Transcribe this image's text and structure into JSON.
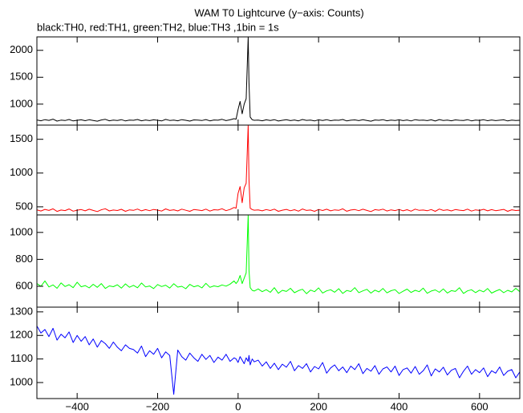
{
  "title": "WAM T0 Lightcurve (y−axis: Counts)",
  "subtitle": "black:TH0, red:TH1, green:TH2, blue:TH3 ,1bin = 1s",
  "chart_data": [
    {
      "type": "line",
      "color": "#000000",
      "xlim": [
        -500,
        700
      ],
      "ylim": [
        610,
        2250
      ],
      "yticks": [
        1000,
        1500,
        2000
      ],
      "x": [
        -500,
        -490,
        -480,
        -470,
        -460,
        -450,
        -440,
        -430,
        -420,
        -410,
        -400,
        -390,
        -380,
        -370,
        -360,
        -350,
        -340,
        -330,
        -320,
        -310,
        -300,
        -290,
        -280,
        -270,
        -260,
        -250,
        -240,
        -230,
        -220,
        -210,
        -200,
        -190,
        -180,
        -170,
        -160,
        -150,
        -140,
        -130,
        -120,
        -110,
        -100,
        -90,
        -80,
        -70,
        -60,
        -50,
        -40,
        -30,
        -20,
        -10,
        -5,
        0,
        5,
        10,
        15,
        20,
        25,
        27,
        30,
        35,
        40,
        50,
        60,
        70,
        80,
        90,
        100,
        110,
        120,
        130,
        140,
        150,
        160,
        170,
        180,
        190,
        200,
        210,
        220,
        230,
        240,
        250,
        260,
        270,
        280,
        290,
        300,
        310,
        320,
        330,
        340,
        350,
        360,
        370,
        380,
        390,
        400,
        410,
        420,
        430,
        440,
        450,
        460,
        470,
        480,
        490,
        500,
        510,
        520,
        530,
        540,
        550,
        560,
        570,
        580,
        590,
        600,
        610,
        620,
        630,
        640,
        650,
        660,
        670,
        680,
        690,
        700
      ],
      "values": [
        705,
        690,
        712,
        698,
        720,
        685,
        702,
        695,
        715,
        688,
        700,
        708,
        692,
        710,
        697,
        683,
        705,
        718,
        690,
        702,
        696,
        711,
        687,
        703,
        699,
        714,
        691,
        706,
        694,
        709,
        700,
        688,
        716,
        697,
        704,
        690,
        712,
        699,
        685,
        707,
        702,
        695,
        713,
        689,
        706,
        701,
        718,
        694,
        709,
        730,
        720,
        900,
        1050,
        820,
        1000,
        1100,
        2250,
        1400,
        760,
        710,
        700,
        703,
        691,
        708,
        695,
        712,
        686,
        700,
        710,
        693,
        705,
        689,
        714,
        698,
        702,
        687,
        709,
        696,
        711,
        692,
        704,
        699,
        715,
        688,
        701,
        707,
        694,
        710,
        697,
        683,
        706,
        700,
        712,
        690,
        703,
        696,
        709,
        693,
        705,
        688,
        711,
        699,
        702,
        694,
        708,
        686,
        713,
        697,
        704,
        691,
        707,
        700,
        695,
        712,
        689,
        703,
        698,
        710,
        692,
        706,
        694,
        701,
        709,
        687,
        704,
        697,
        700
      ]
    },
    {
      "type": "line",
      "color": "#ff0000",
      "xlim": [
        -500,
        700
      ],
      "ylim": [
        380,
        1710
      ],
      "yticks": [
        500,
        1000,
        1500
      ],
      "x": [
        -500,
        -490,
        -480,
        -470,
        -460,
        -450,
        -440,
        -430,
        -420,
        -410,
        -400,
        -390,
        -380,
        -370,
        -360,
        -350,
        -340,
        -330,
        -320,
        -310,
        -300,
        -290,
        -280,
        -270,
        -260,
        -250,
        -240,
        -230,
        -220,
        -210,
        -200,
        -190,
        -180,
        -170,
        -160,
        -150,
        -140,
        -130,
        -120,
        -110,
        -100,
        -90,
        -80,
        -70,
        -60,
        -50,
        -40,
        -30,
        -20,
        -10,
        -5,
        0,
        5,
        10,
        15,
        20,
        25,
        27,
        30,
        35,
        40,
        50,
        60,
        70,
        80,
        90,
        100,
        110,
        120,
        130,
        140,
        150,
        160,
        170,
        180,
        190,
        200,
        210,
        220,
        230,
        240,
        250,
        260,
        270,
        280,
        290,
        300,
        310,
        320,
        330,
        340,
        350,
        360,
        370,
        380,
        390,
        400,
        410,
        420,
        430,
        440,
        450,
        460,
        470,
        480,
        490,
        500,
        510,
        520,
        530,
        540,
        550,
        560,
        570,
        580,
        590,
        600,
        610,
        620,
        630,
        640,
        650,
        660,
        670,
        680,
        690,
        700
      ],
      "values": [
        455,
        438,
        462,
        447,
        470,
        432,
        452,
        444,
        468,
        436,
        450,
        460,
        441,
        464,
        446,
        430,
        456,
        472,
        439,
        453,
        445,
        463,
        434,
        455,
        448,
        467,
        440,
        458,
        443,
        461,
        451,
        437,
        469,
        446,
        456,
        439,
        465,
        449,
        433,
        459,
        453,
        444,
        466,
        437,
        457,
        452,
        472,
        443,
        461,
        490,
        480,
        700,
        800,
        560,
        780,
        850,
        1710,
        900,
        480,
        460,
        450,
        454,
        440,
        459,
        445,
        466,
        433,
        450,
        462,
        442,
        457,
        436,
        468,
        447,
        453,
        434,
        461,
        445,
        464,
        440,
        455,
        448,
        470,
        435,
        452,
        460,
        443,
        464,
        446,
        430,
        458,
        450,
        466,
        438,
        455,
        444,
        461,
        441,
        457,
        436,
        465,
        448,
        453,
        442,
        460,
        433,
        467,
        446,
        456,
        439,
        459,
        450,
        444,
        466,
        437,
        455,
        447,
        463,
        440,
        458,
        443,
        451,
        462,
        434,
        456,
        445,
        450
      ]
    },
    {
      "type": "line",
      "color": "#00ff00",
      "xlim": [
        -500,
        700
      ],
      "ylim": [
        445,
        1130
      ],
      "yticks": [
        600,
        800,
        1000
      ],
      "x": [
        -500,
        -490,
        -480,
        -470,
        -460,
        -450,
        -440,
        -430,
        -420,
        -410,
        -400,
        -390,
        -380,
        -370,
        -360,
        -350,
        -340,
        -330,
        -320,
        -310,
        -300,
        -290,
        -280,
        -270,
        -260,
        -250,
        -240,
        -230,
        -220,
        -210,
        -200,
        -190,
        -180,
        -170,
        -160,
        -150,
        -140,
        -130,
        -120,
        -110,
        -100,
        -90,
        -80,
        -70,
        -60,
        -50,
        -40,
        -30,
        -20,
        -10,
        -5,
        0,
        5,
        10,
        15,
        20,
        25,
        27,
        30,
        35,
        40,
        50,
        60,
        70,
        80,
        90,
        100,
        110,
        120,
        130,
        140,
        150,
        160,
        170,
        180,
        190,
        200,
        210,
        220,
        230,
        240,
        250,
        260,
        270,
        280,
        290,
        300,
        310,
        320,
        330,
        340,
        350,
        360,
        370,
        380,
        390,
        400,
        410,
        420,
        430,
        440,
        450,
        460,
        470,
        480,
        490,
        500,
        510,
        520,
        530,
        540,
        550,
        560,
        570,
        580,
        590,
        600,
        610,
        620,
        630,
        640,
        650,
        660,
        670,
        680,
        690,
        700
      ],
      "values": [
        620,
        600,
        640,
        595,
        610,
        585,
        625,
        598,
        612,
        590,
        630,
        596,
        605,
        588,
        615,
        592,
        620,
        584,
        603,
        597,
        611,
        586,
        618,
        593,
        607,
        589,
        624,
        595,
        602,
        583,
        613,
        598,
        608,
        587,
        619,
        594,
        600,
        582,
        614,
        596,
        605,
        588,
        622,
        592,
        603,
        597,
        610,
        601,
        616,
        640,
        620,
        640,
        680,
        620,
        660,
        700,
        1130,
        720,
        590,
        570,
        565,
        580,
        560,
        575,
        555,
        590,
        548,
        570,
        562,
        585,
        552,
        568,
        578,
        545,
        572,
        560,
        588,
        550,
        566,
        574,
        556,
        582,
        547,
        569,
        561,
        590,
        553,
        566,
        577,
        549,
        571,
        558,
        584,
        551,
        567,
        575,
        546,
        563,
        579,
        554,
        570,
        560,
        586,
        548,
        565,
        573,
        555,
        580,
        550,
        568,
        562,
        589,
        547,
        566,
        574,
        553,
        571,
        559,
        583,
        549,
        564,
        576,
        552,
        570,
        558,
        585,
        560
      ]
    },
    {
      "type": "line",
      "color": "#0000ff",
      "xlim": [
        -500,
        700
      ],
      "ylim": [
        932,
        1320
      ],
      "yticks": [
        1000,
        1100,
        1200,
        1300
      ],
      "xticks": [
        {
          "value": -400,
          "label": "−400"
        },
        {
          "value": -200,
          "label": "−200"
        },
        0,
        200,
        400,
        600
      ],
      "x": [
        -500,
        -490,
        -480,
        -470,
        -460,
        -450,
        -440,
        -430,
        -420,
        -410,
        -400,
        -390,
        -380,
        -370,
        -360,
        -350,
        -340,
        -330,
        -320,
        -310,
        -300,
        -290,
        -280,
        -270,
        -260,
        -250,
        -240,
        -230,
        -220,
        -210,
        -200,
        -190,
        -180,
        -170,
        -160,
        -150,
        -140,
        -130,
        -120,
        -110,
        -100,
        -90,
        -80,
        -70,
        -60,
        -50,
        -40,
        -30,
        -20,
        -10,
        -5,
        0,
        5,
        10,
        15,
        20,
        25,
        27,
        30,
        35,
        40,
        50,
        60,
        70,
        80,
        90,
        100,
        110,
        120,
        130,
        140,
        150,
        160,
        170,
        180,
        190,
        200,
        210,
        220,
        230,
        240,
        250,
        260,
        270,
        280,
        290,
        300,
        310,
        320,
        330,
        340,
        350,
        360,
        370,
        380,
        390,
        400,
        410,
        420,
        430,
        440,
        450,
        460,
        470,
        480,
        490,
        500,
        510,
        520,
        530,
        540,
        550,
        560,
        570,
        580,
        590,
        600,
        610,
        620,
        630,
        640,
        650,
        660,
        670,
        680,
        690,
        700
      ],
      "values": [
        1240,
        1210,
        1225,
        1195,
        1230,
        1180,
        1205,
        1190,
        1215,
        1170,
        1200,
        1175,
        1195,
        1160,
        1185,
        1150,
        1178,
        1165,
        1145,
        1172,
        1150,
        1135,
        1160,
        1145,
        1140,
        1125,
        1155,
        1110,
        1135,
        1120,
        1145,
        1105,
        1130,
        1115,
        950,
        1138,
        1110,
        1095,
        1125,
        1105,
        1090,
        1120,
        1098,
        1115,
        1085,
        1108,
        1095,
        1120,
        1090,
        1105,
        1100,
        1085,
        1110,
        1095,
        1080,
        1105,
        1090,
        1115,
        1075,
        1100,
        1088,
        1095,
        1070,
        1088,
        1060,
        1082,
        1055,
        1078,
        1065,
        1090,
        1050,
        1072,
        1060,
        1080,
        1045,
        1068,
        1058,
        1085,
        1040,
        1062,
        1075,
        1050,
        1066,
        1042,
        1070,
        1055,
        1080,
        1038,
        1060,
        1048,
        1072,
        1035,
        1058,
        1066,
        1045,
        1070,
        1030,
        1055,
        1062,
        1040,
        1068,
        1035,
        1050,
        1075,
        1028,
        1058,
        1045,
        1065,
        1032,
        1052,
        1060,
        1020,
        1048,
        1070,
        1035,
        1055,
        1042,
        1062,
        1025,
        1050,
        1040,
        1066,
        1030,
        1048,
        1055,
        1020,
        1045
      ]
    }
  ]
}
